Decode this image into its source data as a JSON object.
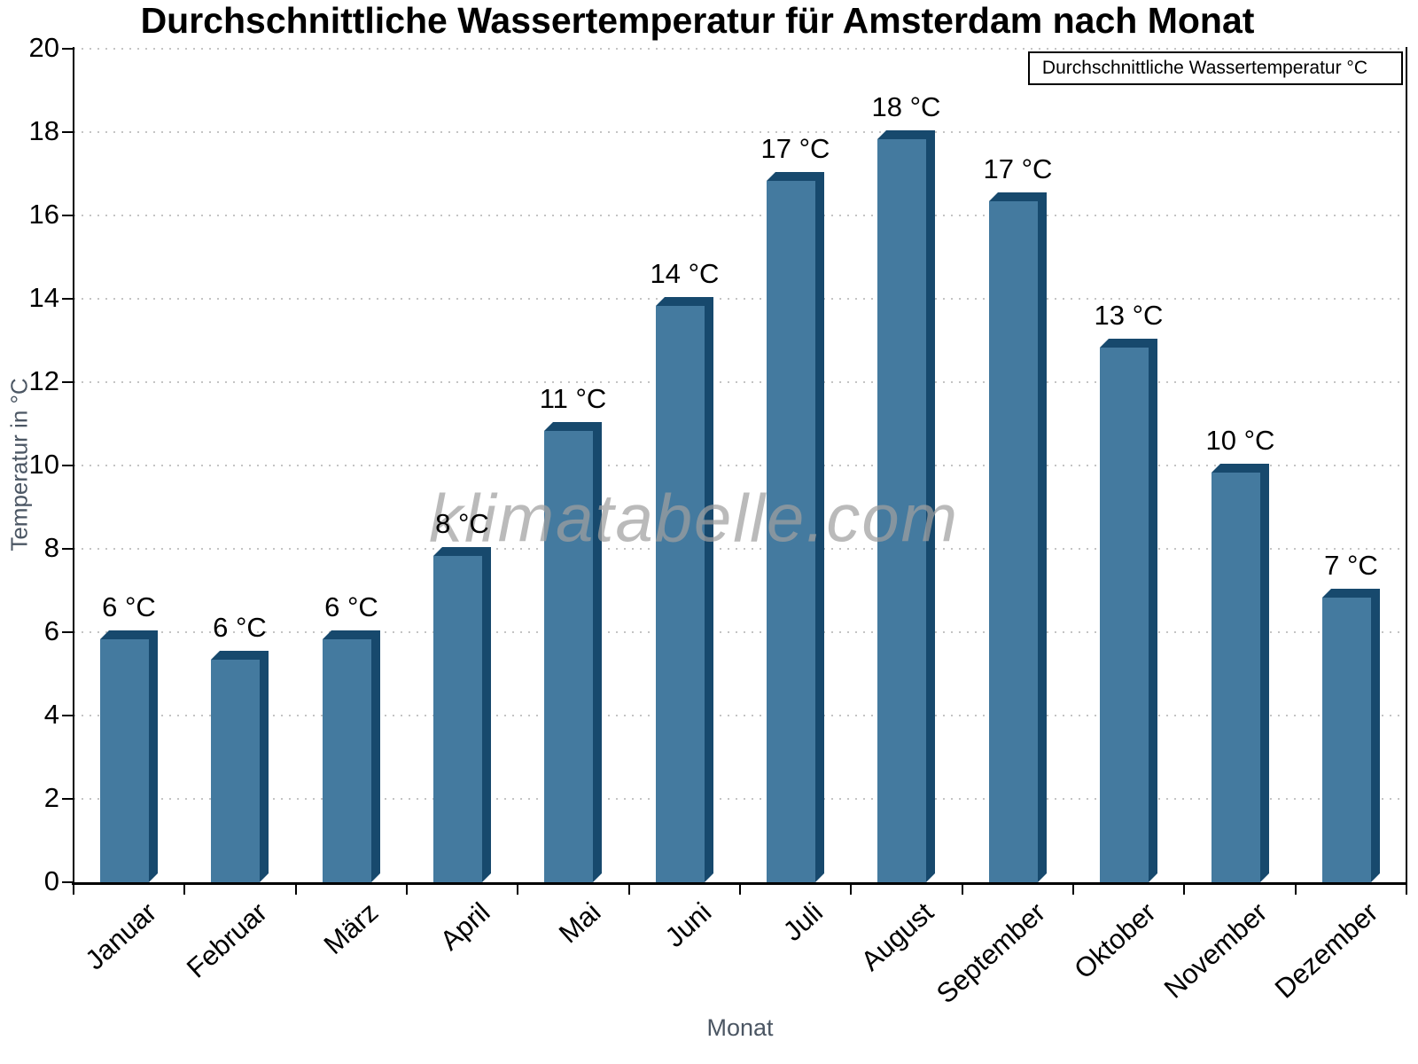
{
  "watermark": "klimatabelle.com",
  "colors": {
    "bar_face": "#447a9f",
    "bar_edge": "#17496d",
    "gridline": "#c4c4c4",
    "axis": "#000000",
    "axis_title_text": "#4b5663",
    "watermark_text": "#a0a0a0"
  },
  "chart_data": {
    "type": "bar",
    "title": "Durchschnittliche Wassertemperatur für Amsterdam nach Monat",
    "legend": "Durchschnittliche Wassertemperatur °C",
    "legend_position": "top-right",
    "xlabel": "Monat",
    "ylabel": "Temperatur in °C",
    "ylim": [
      0,
      20
    ],
    "ytick_step": 2,
    "y_tick_labels": [
      "0",
      "2",
      "4",
      "6",
      "8",
      "10",
      "12",
      "14",
      "16",
      "18",
      "20"
    ],
    "grid": "dotted horizontal",
    "categories": [
      "Januar",
      "Februar",
      "März",
      "April",
      "Mai",
      "Juni",
      "Juli",
      "August",
      "September",
      "Oktober",
      "November",
      "Dezember"
    ],
    "values": [
      6.05,
      5.55,
      6.05,
      8.05,
      11.05,
      14.05,
      17.05,
      18.05,
      16.55,
      13.05,
      10.05,
      7.05
    ],
    "bar_labels": [
      "6 °C",
      "6 °C",
      "6 °C",
      "8 °C",
      "11 °C",
      "14 °C",
      "17 °C",
      "18 °C",
      "17 °C",
      "13 °C",
      "10 °C",
      "7 °C"
    ]
  }
}
